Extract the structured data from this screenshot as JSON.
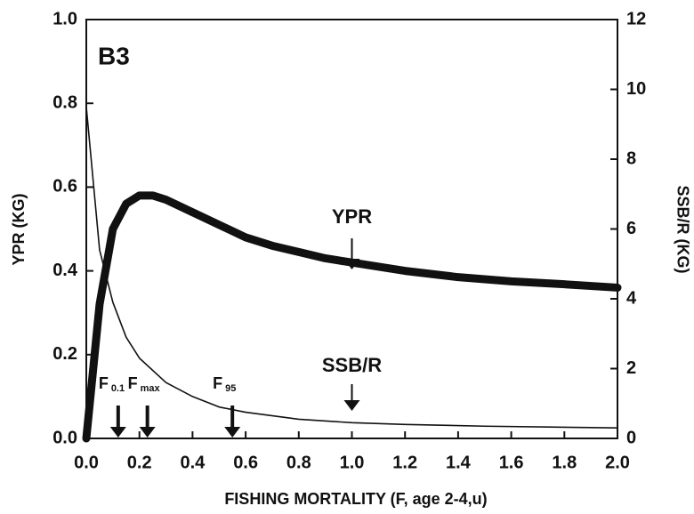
{
  "chart_data": {
    "type": "line",
    "panel_label": "B3",
    "xlabel": "FISHING MORTALITY (F, age 2-4,u)",
    "ylabel": "YPR (KG)",
    "y2label": "SSB/R (KG)",
    "xlim": [
      0,
      2
    ],
    "ylim": [
      0,
      1
    ],
    "y2lim": [
      0,
      12
    ],
    "xticks": [
      {
        "value": 0,
        "label": "0.0"
      },
      0.2,
      0.4,
      0.6,
      0.8,
      {
        "value": 1,
        "label": "1.0"
      },
      1.2,
      1.4,
      1.6,
      1.8,
      {
        "value": 2,
        "label": "2.0"
      }
    ],
    "yticks": [
      {
        "value": 0,
        "label": "0.0"
      },
      0.2,
      0.4,
      0.6,
      0.8,
      {
        "value": 1,
        "label": "1.0"
      }
    ],
    "y2ticks": [
      0,
      2,
      4,
      6,
      8,
      10,
      12
    ],
    "series": [
      {
        "name": "YPR",
        "color": "#111111",
        "axis": "y",
        "x": [
          0,
          0.05,
          0.1,
          0.15,
          0.2,
          0.25,
          0.3,
          0.4,
          0.5,
          0.6,
          0.7,
          0.8,
          0.9,
          1.0,
          1.2,
          1.4,
          1.6,
          1.8,
          2.0
        ],
        "values": [
          0,
          0.32,
          0.5,
          0.56,
          0.58,
          0.58,
          0.57,
          0.54,
          0.51,
          0.48,
          0.46,
          0.445,
          0.43,
          0.42,
          0.4,
          0.385,
          0.375,
          0.368,
          0.36
        ]
      },
      {
        "name": "SSB/R",
        "color": "#111111",
        "axis": "y2",
        "x": [
          0,
          0.05,
          0.1,
          0.15,
          0.2,
          0.3,
          0.4,
          0.5,
          0.6,
          0.8,
          1.0,
          1.2,
          1.5,
          2.0
        ],
        "values": [
          9.5,
          5.4,
          3.9,
          2.9,
          2.3,
          1.6,
          1.2,
          0.9,
          0.75,
          0.55,
          0.45,
          0.4,
          0.35,
          0.3
        ]
      }
    ],
    "reference_points": [
      {
        "text": "F",
        "sub": "0.1",
        "x": 0.12
      },
      {
        "text": "F",
        "sub": "max",
        "x": 0.23
      },
      {
        "text": "F",
        "sub": "95",
        "x": 0.55
      }
    ],
    "curve_labels": [
      {
        "text": "YPR",
        "x": 1.0
      },
      {
        "text": "SSB/R",
        "x": 1.0
      }
    ]
  }
}
